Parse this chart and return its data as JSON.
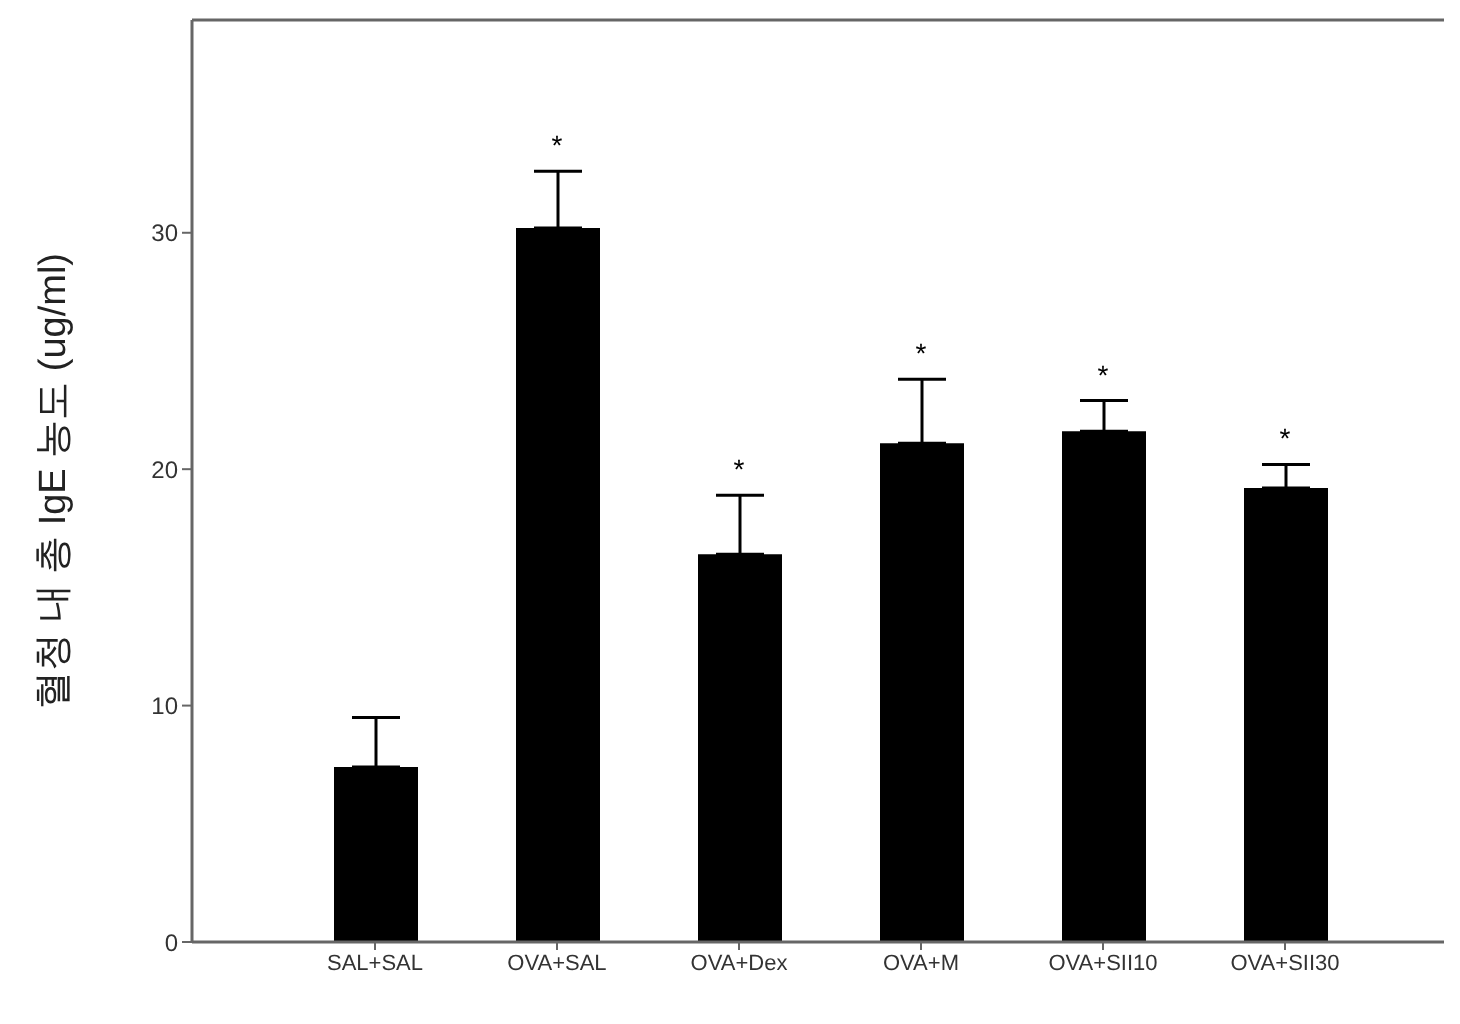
{
  "chart_data": {
    "type": "bar",
    "ylabel": "혈청 내 총 IgE 농도 (ug/ml)",
    "categories": [
      "SAL+SAL",
      "OVA+SAL",
      "OVA+Dex",
      "OVA+M",
      "OVA+SII10",
      "OVA+SII30"
    ],
    "values": [
      7.4,
      30.2,
      16.4,
      21.1,
      21.6,
      19.2
    ],
    "errors": [
      [
        7.4,
        9.5
      ],
      [
        30.2,
        32.6
      ],
      [
        16.4,
        18.9
      ],
      [
        21.1,
        23.8
      ],
      [
        21.6,
        22.9
      ],
      [
        19.2,
        20.2
      ]
    ],
    "color": "#000000",
    "ylim": [
      0,
      39
    ],
    "yticks": [
      0,
      10,
      20,
      30
    ],
    "grid": false,
    "annotations": [
      {
        "text": "*",
        "x": "OVA+SAL",
        "y": 32.6
      },
      {
        "text": "*",
        "x": "OVA+Dex",
        "y": 18.9
      },
      {
        "text": "*",
        "x": "OVA+M",
        "y": 23.8
      },
      {
        "text": "*",
        "x": "OVA+SII10",
        "y": 22.9
      },
      {
        "text": "*",
        "x": "OVA+SII30",
        "y": 20.2
      }
    ]
  }
}
